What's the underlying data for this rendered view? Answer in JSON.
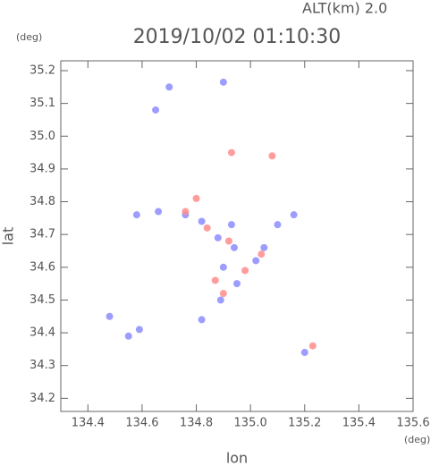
{
  "chart_data": {
    "type": "scatter",
    "title": "2019/10/02 01:10:30",
    "subtitle": "ALT(km) 2.0",
    "x_label": "lon",
    "y_label": "lat",
    "x_unit": "(deg)",
    "y_unit": "(deg)",
    "xlim": [
      134.3,
      135.6
    ],
    "ylim": [
      34.16,
      35.23
    ],
    "xticks": [
      134.4,
      134.6,
      134.8,
      {
        "value": 135.0,
        "label": "135.0"
      },
      135.2,
      135.4,
      135.6
    ],
    "yticks": [
      34.2,
      34.3,
      34.4,
      34.5,
      34.6,
      34.7,
      34.8,
      34.9,
      {
        "value": 35.0,
        "label": "35.0"
      },
      35.1,
      35.2
    ],
    "series": [
      {
        "color": "#8c8cff",
        "x": [
          134.7,
          134.9,
          134.65,
          134.58,
          134.66,
          134.76,
          134.82,
          134.88,
          134.94,
          135.05,
          134.9,
          134.95,
          134.89,
          135.16,
          135.1,
          134.48,
          134.55,
          134.59,
          134.82,
          135.2,
          134.93,
          135.02
        ],
        "values": [
          35.15,
          35.165,
          35.08,
          34.76,
          34.77,
          34.76,
          34.74,
          34.69,
          34.66,
          34.66,
          34.6,
          34.55,
          34.5,
          34.76,
          34.73,
          34.45,
          34.39,
          34.41,
          34.44,
          34.34,
          34.73,
          34.62
        ]
      },
      {
        "color": "#ff8c8c",
        "x": [
          134.93,
          135.08,
          134.8,
          134.76,
          134.84,
          134.92,
          134.98,
          135.04,
          134.9,
          135.23,
          134.87
        ],
        "values": [
          34.95,
          34.94,
          34.81,
          34.77,
          34.72,
          34.68,
          34.59,
          34.64,
          34.52,
          34.36,
          34.56
        ]
      }
    ]
  }
}
